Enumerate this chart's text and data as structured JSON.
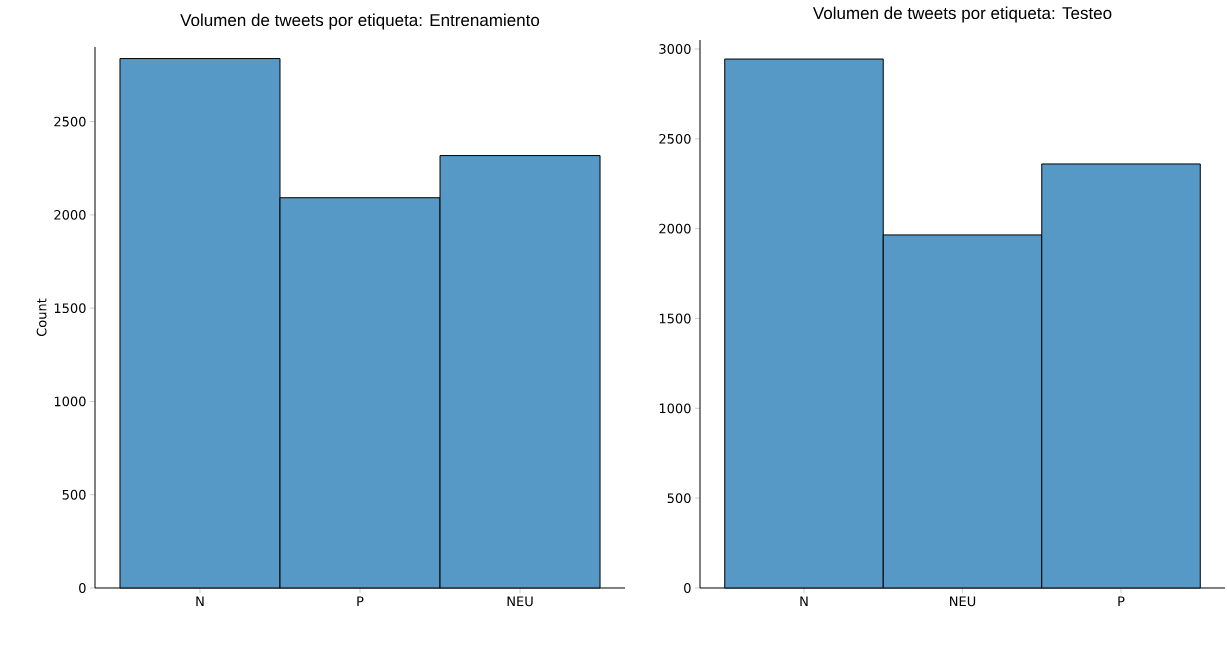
{
  "chart_data": [
    {
      "type": "bar",
      "title": "Volumen de tweets por etiqueta: Entrenamiento",
      "ylabel": "Count",
      "categories": [
        "N",
        "P",
        "NEU"
      ],
      "values": [
        2838,
        2092,
        2318
      ],
      "color": "#5698c6",
      "ylim": [
        0,
        2900
      ],
      "yticks": [
        0,
        500,
        1000,
        1500,
        2000,
        2500
      ]
    },
    {
      "type": "bar",
      "title": "Volumen de tweets por etiqueta: Testeo",
      "categories": [
        "N",
        "NEU",
        "P"
      ],
      "values": [
        2944,
        1965,
        2360
      ],
      "color": "#5698c6",
      "ylim": [
        0,
        3050
      ],
      "yticks": [
        0,
        500,
        1000,
        1500,
        2000,
        2500,
        3000
      ]
    }
  ]
}
